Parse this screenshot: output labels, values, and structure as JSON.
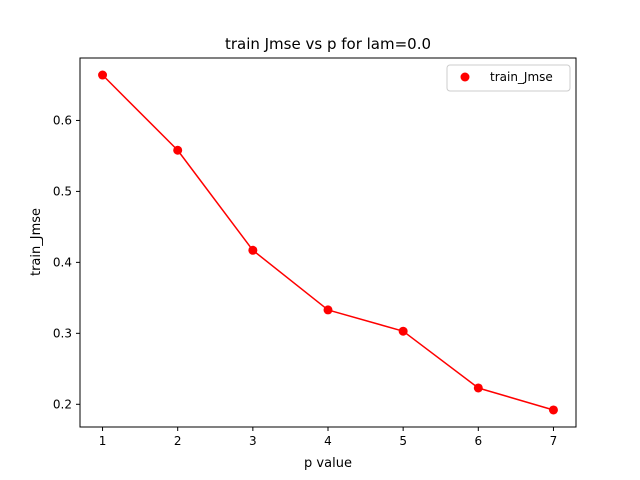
{
  "chart_data": {
    "type": "line",
    "title": "train Jmse vs p for lam=0.0",
    "xlabel": "p value",
    "ylabel": "train_Jmse",
    "x": [
      1,
      2,
      3,
      4,
      5,
      6,
      7
    ],
    "series": [
      {
        "name": "train_Jmse",
        "values": [
          0.664,
          0.558,
          0.417,
          0.333,
          0.303,
          0.223,
          0.192
        ],
        "color": "#ff0000",
        "marker": "circle",
        "line": true
      }
    ],
    "xlim": [
      0.7,
      7.3
    ],
    "ylim": [
      0.168,
      0.688
    ],
    "xticks": [
      1,
      2,
      3,
      4,
      5,
      6,
      7
    ],
    "xtick_labels": [
      "1",
      "2",
      "3",
      "4",
      "5",
      "6",
      "7"
    ],
    "yticks": [
      0.2,
      0.3,
      0.4,
      0.5,
      0.6
    ],
    "ytick_labels": [
      "0.2",
      "0.3",
      "0.4",
      "0.5",
      "0.6"
    ],
    "legend": {
      "position": "top-right",
      "labels": [
        "train_Jmse"
      ]
    },
    "grid": false
  }
}
